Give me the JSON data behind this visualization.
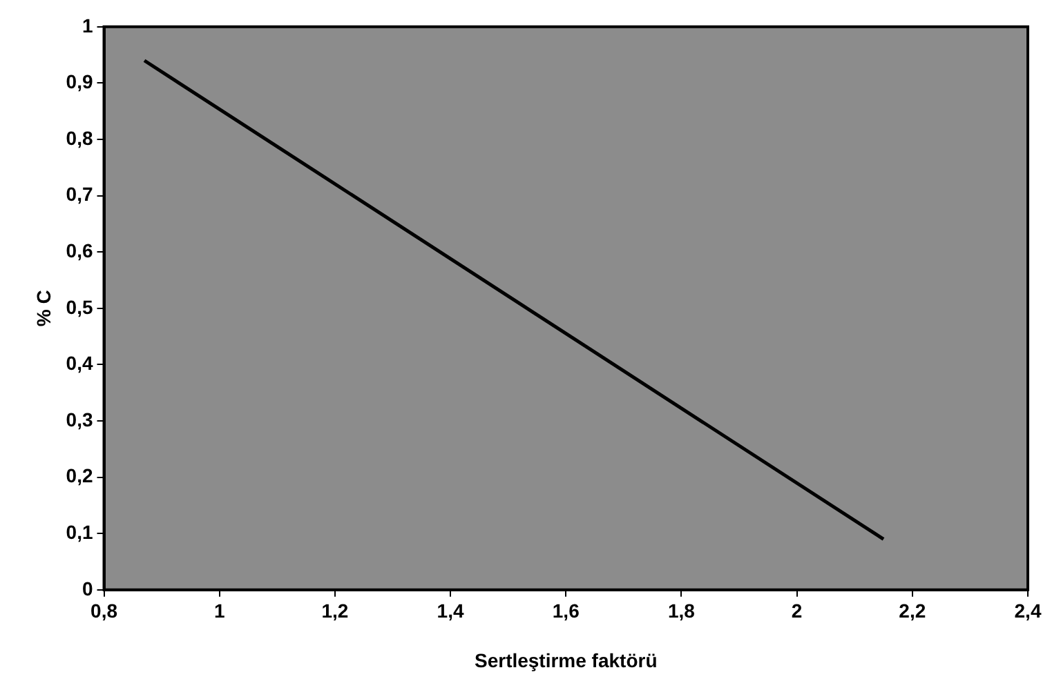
{
  "chart_data": {
    "type": "line",
    "xlabel": "Sertleştirme faktörü",
    "ylabel": "% C",
    "series": [
      {
        "color": "#000000",
        "x": [
          0.87,
          2.15
        ],
        "values": [
          0.94,
          0.09
        ]
      }
    ],
    "xlim": [
      0.8,
      2.4
    ],
    "ylim": [
      0,
      1
    ],
    "xticks": [
      {
        "value": 0.8,
        "label": "0,8"
      },
      1,
      {
        "value": 1.2,
        "label": "1,2"
      },
      {
        "value": 1.4,
        "label": "1,4"
      },
      {
        "value": 1.6,
        "label": "1,6"
      },
      {
        "value": 1.8,
        "label": "1,8"
      },
      2,
      {
        "value": 2.2,
        "label": "2,2"
      },
      {
        "value": 2.4,
        "label": "2,4"
      }
    ],
    "yticks": [
      0,
      {
        "value": 0.1,
        "label": "0,1"
      },
      {
        "value": 0.2,
        "label": "0,2"
      },
      {
        "value": 0.3,
        "label": "0,3"
      },
      {
        "value": 0.4,
        "label": "0,4"
      },
      {
        "value": 0.5,
        "label": "0,5"
      },
      {
        "value": 0.6,
        "label": "0,6"
      },
      {
        "value": 0.7,
        "label": "0,7"
      },
      {
        "value": 0.8,
        "label": "0,8"
      },
      {
        "value": 0.9,
        "label": "0,9"
      },
      1
    ],
    "grid": false,
    "legend": false,
    "marker": "none",
    "line_style": "solid"
  }
}
